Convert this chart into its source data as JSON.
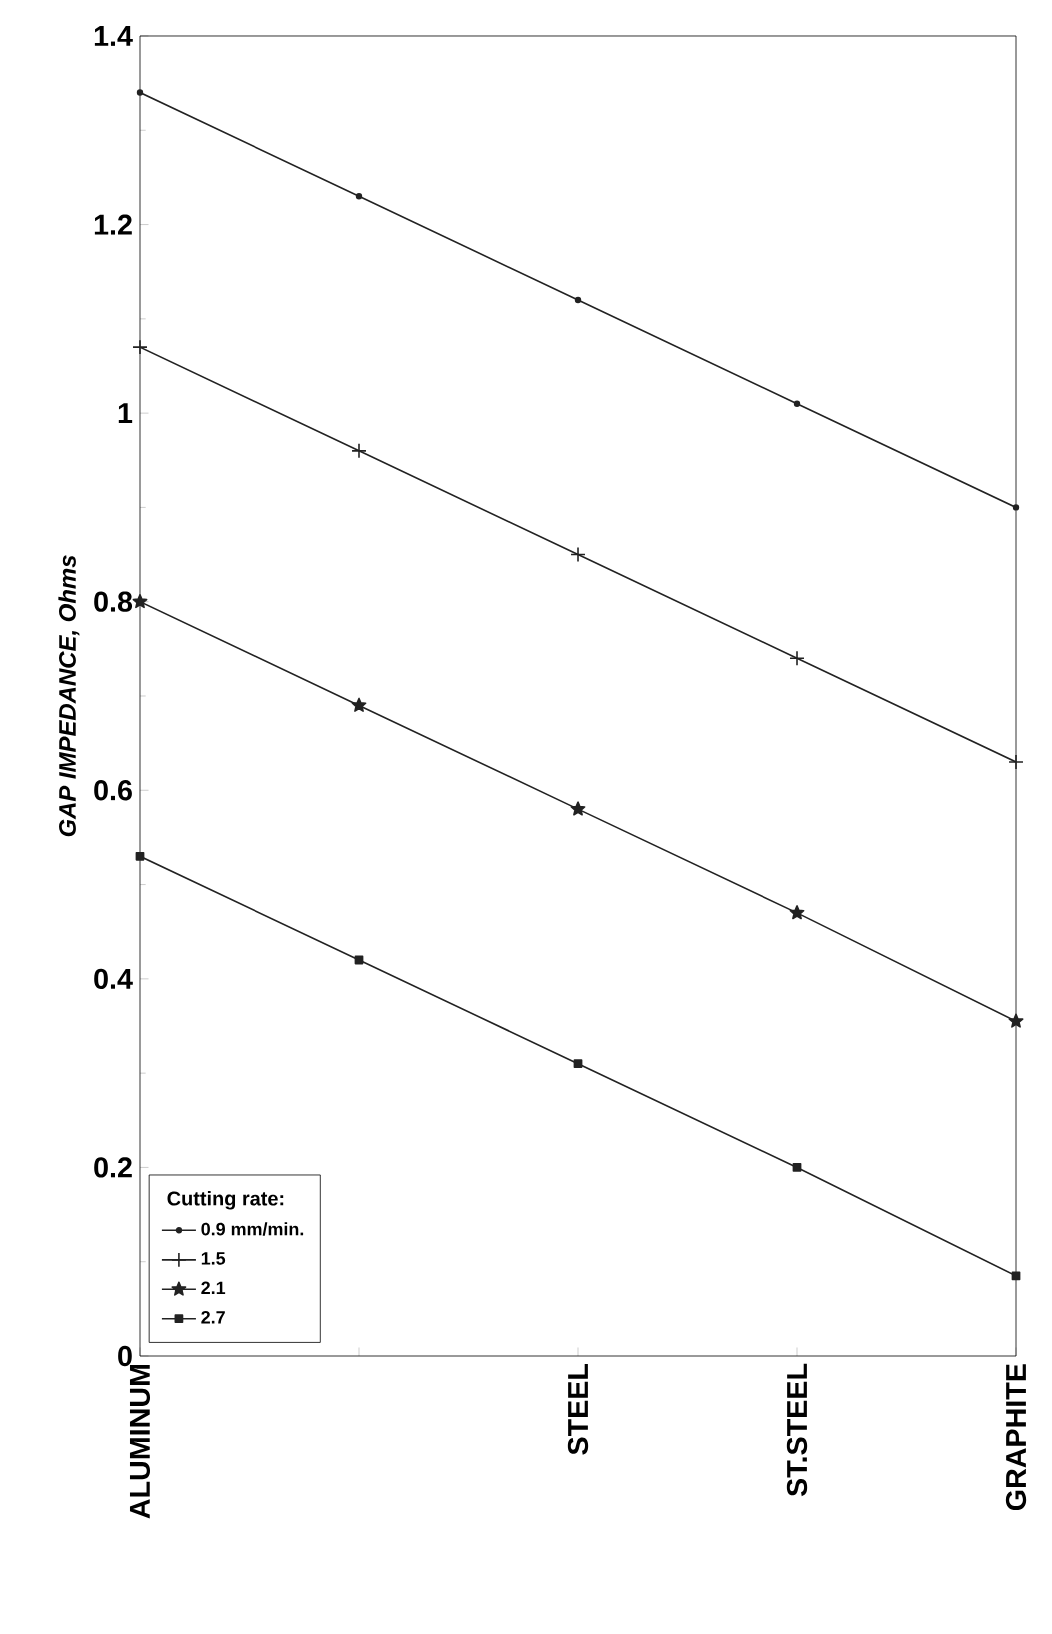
{
  "chart_data": {
    "type": "line",
    "ylabel": "GAP IMPEDANCE, Ohms",
    "legend_title": "Cutting rate:",
    "categories": [
      "ALUMINUM",
      null,
      "STEEL",
      "ST.STEEL",
      "GRAPHITE"
    ],
    "series": [
      {
        "name": "0.9 mm/min.",
        "color": "#222222",
        "marker": "circle",
        "values": [
          1.34,
          1.23,
          1.12,
          1.01,
          0.9
        ]
      },
      {
        "name": "1.5",
        "color": "#222222",
        "marker": "cross",
        "values": [
          1.07,
          0.96,
          0.85,
          0.74,
          0.63
        ]
      },
      {
        "name": "2.1",
        "color": "#222222",
        "marker": "star",
        "values": [
          0.8,
          0.69,
          0.58,
          0.47,
          0.355
        ]
      },
      {
        "name": "2.7",
        "color": "#222222",
        "marker": "square",
        "values": [
          0.53,
          0.42,
          0.31,
          0.2,
          0.085
        ]
      }
    ],
    "ylim": [
      0,
      1.4
    ],
    "yticks": [
      0,
      0.2,
      0.4,
      0.6,
      0.8,
      1,
      1.2,
      1.4
    ],
    "legend": "bottom left",
    "grid": false
  }
}
